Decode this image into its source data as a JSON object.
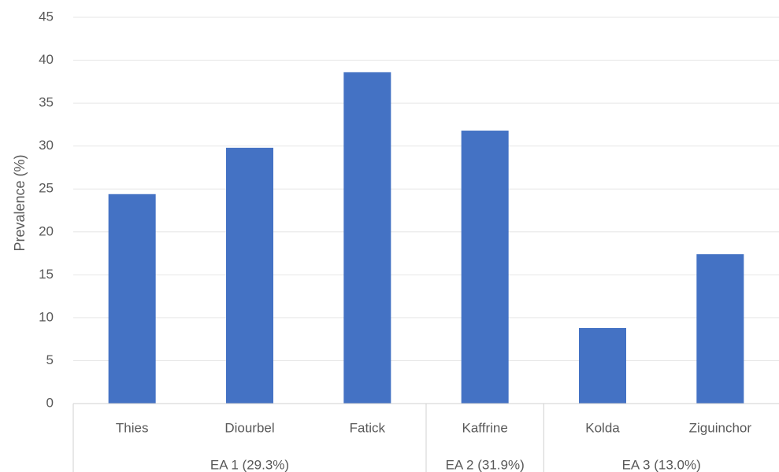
{
  "chart_data": {
    "type": "bar",
    "title": "",
    "xlabel": "",
    "ylabel": "Prevalence (%)",
    "ylim": [
      0,
      45
    ],
    "yticks": [
      0,
      5,
      10,
      15,
      20,
      25,
      30,
      35,
      40,
      45
    ],
    "grid": true,
    "legend": "none",
    "bar_color": "#4472c4",
    "categories": [
      "Thies",
      "Diourbel",
      "Fatick",
      "Kaffrine",
      "Kolda",
      "Ziguinchor"
    ],
    "values": [
      24.4,
      29.8,
      38.6,
      31.8,
      8.8,
      17.4
    ],
    "groups": [
      {
        "label": "EA 1 (29.3%)",
        "categories": [
          "Thies",
          "Diourbel",
          "Fatick"
        ]
      },
      {
        "label": "EA 2 (31.9%)",
        "categories": [
          "Kaffrine"
        ]
      },
      {
        "label": "EA 3 (13.0%)",
        "categories": [
          "Kolda",
          "Ziguinchor"
        ]
      }
    ]
  }
}
